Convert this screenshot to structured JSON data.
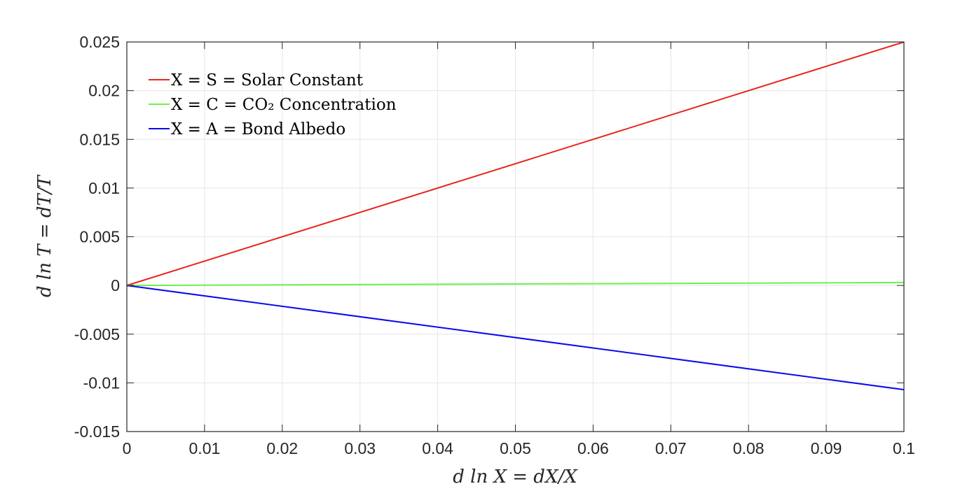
{
  "chart_data": {
    "type": "line",
    "title": "",
    "xlabel": "d ln X = dX/X",
    "ylabel": "d ln T = dT/T",
    "xlim": [
      0,
      0.1
    ],
    "ylim": [
      -0.015,
      0.025
    ],
    "xticks": [
      "0",
      "0.01",
      "0.02",
      "0.03",
      "0.04",
      "0.05",
      "0.06",
      "0.07",
      "0.08",
      "0.09",
      "0.1"
    ],
    "yticks": [
      "-0.015",
      "-0.01",
      "-0.005",
      "0",
      "0.005",
      "0.01",
      "0.015",
      "0.02",
      "0.025"
    ],
    "grid": true,
    "legend_position": "top-left",
    "series": [
      {
        "name": "X = S = Solar Constant",
        "color": "#e8261c",
        "x": [
          0,
          0.1
        ],
        "y": [
          0,
          0.025
        ]
      },
      {
        "name": "X = C = CO₂ Concentration",
        "color": "#6ef04a",
        "x": [
          0,
          0.1
        ],
        "y": [
          0,
          0.0003
        ]
      },
      {
        "name": "X = A = Bond Albedo",
        "color": "#0a0aee",
        "x": [
          0,
          0.1
        ],
        "y": [
          0,
          -0.0107
        ]
      }
    ]
  }
}
